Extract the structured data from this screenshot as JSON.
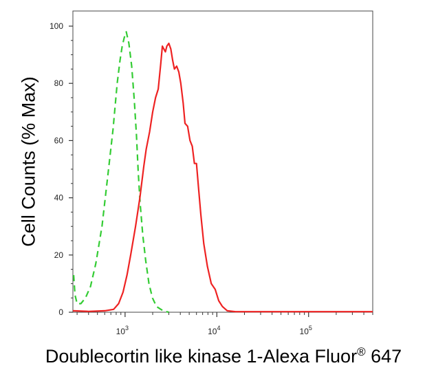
{
  "chart_data": {
    "type": "line",
    "title": "",
    "xlabel": {
      "main": "Doublecortin like kinase 1-Alexa Fluor",
      "superscript": "®",
      "suffix": " 647"
    },
    "ylabel": "Cell Counts (% Max)",
    "x_scale": "log",
    "xlim": [
      270,
      500000
    ],
    "ylim": [
      0,
      100
    ],
    "x_tick_labels": [
      {
        "base": "10",
        "exp": "3",
        "value": 1000
      },
      {
        "base": "10",
        "exp": "4",
        "value": 10000
      },
      {
        "base": "10",
        "exp": "5",
        "value": 100000
      }
    ],
    "y_tick_labels": [
      "0",
      "20",
      "40",
      "60",
      "80",
      "100"
    ],
    "y_ticks": [
      0,
      20,
      40,
      60,
      80,
      100
    ],
    "grid": false,
    "legend": "none",
    "series": [
      {
        "color": "#33cc33",
        "style": "dashed",
        "points": [
          [
            275,
            13
          ],
          [
            285,
            6
          ],
          [
            300,
            3
          ],
          [
            330,
            3
          ],
          [
            370,
            5
          ],
          [
            420,
            9
          ],
          [
            480,
            17
          ],
          [
            560,
            30
          ],
          [
            650,
            48
          ],
          [
            740,
            64
          ],
          [
            820,
            80
          ],
          [
            880,
            88
          ],
          [
            930,
            93
          ],
          [
            980,
            96
          ],
          [
            1030,
            98
          ],
          [
            1100,
            94
          ],
          [
            1180,
            86
          ],
          [
            1260,
            74
          ],
          [
            1330,
            62
          ],
          [
            1390,
            49
          ],
          [
            1460,
            38
          ],
          [
            1560,
            27
          ],
          [
            1680,
            18
          ],
          [
            1820,
            10
          ],
          [
            1990,
            5
          ],
          [
            2200,
            2
          ],
          [
            2600,
            0.5
          ],
          [
            3000,
            0
          ]
        ]
      },
      {
        "color": "#ee2222",
        "style": "solid",
        "points": [
          [
            270,
            0.5
          ],
          [
            400,
            0.3
          ],
          [
            600,
            0.5
          ],
          [
            750,
            1
          ],
          [
            850,
            3
          ],
          [
            950,
            7
          ],
          [
            1050,
            13
          ],
          [
            1150,
            20
          ],
          [
            1300,
            30
          ],
          [
            1450,
            40
          ],
          [
            1600,
            51
          ],
          [
            1700,
            57
          ],
          [
            1850,
            63
          ],
          [
            2000,
            70
          ],
          [
            2150,
            75
          ],
          [
            2300,
            78
          ],
          [
            2450,
            87
          ],
          [
            2550,
            93
          ],
          [
            2650,
            92
          ],
          [
            2750,
            91
          ],
          [
            2850,
            93
          ],
          [
            3000,
            94
          ],
          [
            3150,
            92
          ],
          [
            3300,
            88
          ],
          [
            3450,
            85
          ],
          [
            3650,
            86
          ],
          [
            3850,
            84
          ],
          [
            4050,
            80
          ],
          [
            4300,
            73
          ],
          [
            4500,
            66
          ],
          [
            4800,
            65
          ],
          [
            5100,
            60
          ],
          [
            5400,
            58
          ],
          [
            5700,
            52
          ],
          [
            6000,
            52
          ],
          [
            6300,
            44
          ],
          [
            6700,
            34
          ],
          [
            7200,
            24
          ],
          [
            7900,
            16
          ],
          [
            8700,
            10
          ],
          [
            9600,
            8
          ],
          [
            10500,
            4
          ],
          [
            11500,
            2
          ],
          [
            13000,
            0.5
          ],
          [
            16000,
            0.2
          ],
          [
            30000,
            0.2
          ],
          [
            100000,
            0.2
          ],
          [
            500000,
            0.2
          ]
        ]
      }
    ]
  }
}
